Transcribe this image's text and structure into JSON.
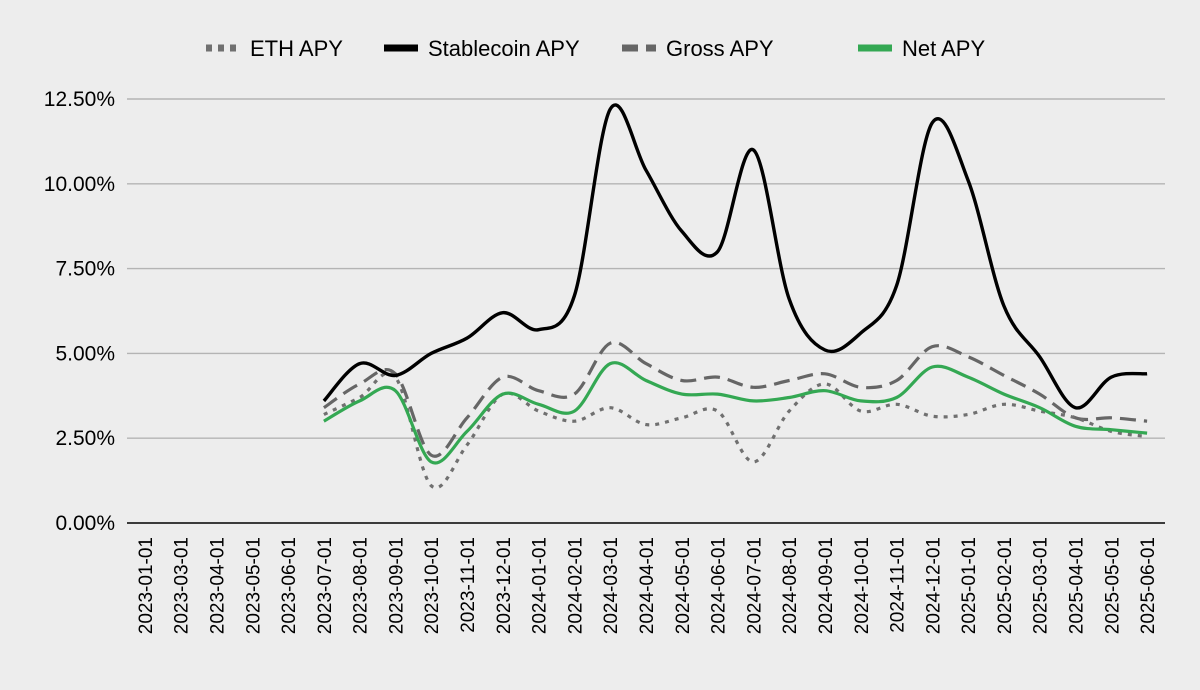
{
  "chart_data": {
    "type": "line",
    "title": "",
    "xlabel": "",
    "ylabel": "",
    "ylim": [
      0,
      0.125
    ],
    "y_ticks": [
      0,
      0.025,
      0.05,
      0.075,
      0.1,
      0.125
    ],
    "y_tick_labels": [
      "0.00%",
      "2.50%",
      "5.00%",
      "7.50%",
      "10.00%",
      "12.50%"
    ],
    "grid": "horizontal",
    "legend_position": "top",
    "x": [
      "2023-01-01",
      "2023-03-01",
      "2023-04-01",
      "2023-05-01",
      "2023-06-01",
      "2023-07-01",
      "2023-08-01",
      "2023-09-01",
      "2023-10-01",
      "2023-11-01",
      "2023-12-01",
      "2024-01-01",
      "2024-02-01",
      "2024-03-01",
      "2024-04-01",
      "2024-05-01",
      "2024-06-01",
      "2024-07-01",
      "2024-08-01",
      "2024-09-01",
      "2024-10-01",
      "2024-11-01",
      "2024-12-01",
      "2025-01-01",
      "2025-02-01",
      "2025-03-01",
      "2025-04-01",
      "2025-05-01",
      "2025-06-01"
    ],
    "series": [
      {
        "name": "ETH APY",
        "color": "#707070",
        "style": "dotted",
        "values": [
          null,
          null,
          null,
          null,
          null,
          0.032,
          0.037,
          0.043,
          0.011,
          0.023,
          0.038,
          0.033,
          0.03,
          0.034,
          0.029,
          0.031,
          0.033,
          0.018,
          0.033,
          0.041,
          0.033,
          0.035,
          0.0315,
          0.032,
          0.035,
          0.033,
          0.031,
          0.027,
          0.0255
        ]
      },
      {
        "name": "Stablecoin APY",
        "color": "#000000",
        "style": "solid",
        "values": [
          null,
          null,
          null,
          null,
          null,
          0.036,
          0.047,
          0.0435,
          0.05,
          0.0545,
          0.062,
          0.057,
          0.067,
          0.122,
          0.104,
          0.086,
          0.08,
          0.11,
          0.066,
          0.051,
          0.056,
          0.07,
          0.118,
          0.101,
          0.064,
          0.049,
          0.034,
          0.043,
          0.044
        ]
      },
      {
        "name": "Gross APY",
        "color": "#666666",
        "style": "dashed",
        "values": [
          null,
          null,
          null,
          null,
          null,
          0.034,
          0.041,
          0.044,
          0.02,
          0.031,
          0.043,
          0.039,
          0.038,
          0.053,
          0.047,
          0.042,
          0.043,
          0.04,
          0.042,
          0.044,
          0.04,
          0.042,
          0.052,
          0.049,
          0.0435,
          0.038,
          0.031,
          0.031,
          0.03
        ]
      },
      {
        "name": "Net APY",
        "color": "#34a853",
        "style": "solid",
        "values": [
          null,
          null,
          null,
          null,
          null,
          0.03,
          0.036,
          0.039,
          0.018,
          0.027,
          0.038,
          0.035,
          0.033,
          0.047,
          0.042,
          0.038,
          0.038,
          0.036,
          0.037,
          0.039,
          0.036,
          0.037,
          0.046,
          0.043,
          0.038,
          0.034,
          0.0285,
          0.0275,
          0.0265
        ]
      }
    ]
  }
}
